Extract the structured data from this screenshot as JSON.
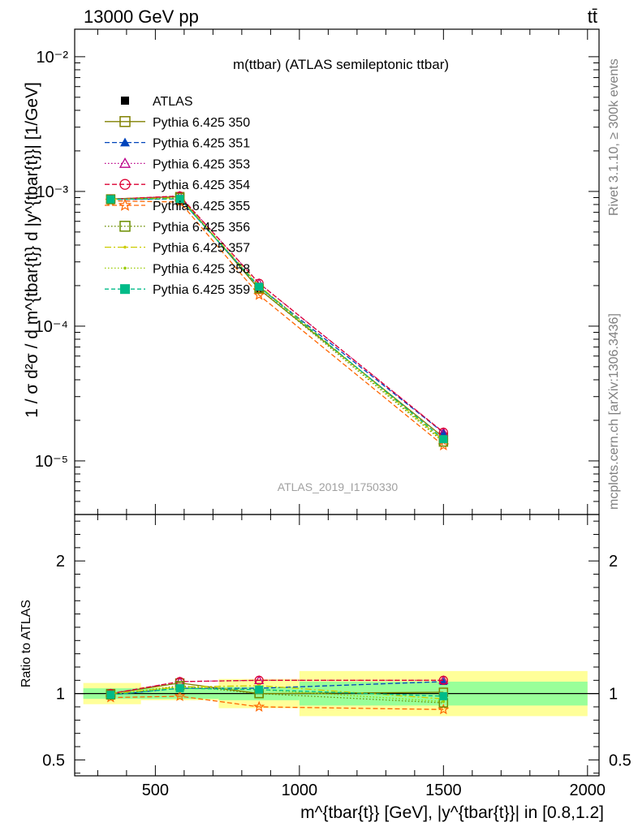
{
  "header": {
    "energy_label": "13000 GeV pp",
    "process_label": "tt̄"
  },
  "side_labels": {
    "rivet": "Rivet 3.1.10, ≥ 300k events",
    "source": "mcplots.cern.ch [arXiv:1306.3436]"
  },
  "watermark": "ATLAS_2019_I1750330",
  "chart_data": [
    {
      "type": "line",
      "panel": "main",
      "title": "m(ttbar) (ATLAS semileptonic ttbar)",
      "ylabel": "1 / σ d²σ / d m^{tbar{t}} d |y^{tbar{t}}| [1/GeV]",
      "yscale": "log",
      "ylim": [
        4e-06,
        0.016
      ],
      "xlim": [
        220,
        2040
      ],
      "ytick_labels": [
        "10⁻⁵",
        "10⁻⁴",
        "10⁻³",
        "10⁻²"
      ],
      "legend_position": "top-left",
      "x": [
        345,
        585,
        860,
        1500
      ],
      "bins": [
        [
          250,
          450
        ],
        [
          450,
          720
        ],
        [
          720,
          1000
        ],
        [
          1000,
          2000
        ]
      ],
      "series": [
        {
          "name": "ATLAS",
          "values": [
            0.00088,
            0.00085,
            0.00019,
            1.48e-05
          ],
          "color": "#000000",
          "marker": "square-filled",
          "dash": "none"
        },
        {
          "name": "Pythia 6.425 350",
          "values": [
            0.00088,
            0.000915,
            0.000188,
            1.5e-05
          ],
          "color": "#808000",
          "marker": "square-open",
          "dash": "none"
        },
        {
          "name": "Pythia 6.425 351",
          "values": [
            0.00087,
            0.00088,
            0.000196,
            1.62e-05
          ],
          "color": "#0044bb",
          "marker": "triangle-filled",
          "dash": "6,3"
        },
        {
          "name": "Pythia 6.425 353",
          "values": [
            0.000875,
            0.000925,
            0.000208,
            1.63e-05
          ],
          "color": "#bb0088",
          "marker": "triangle-open",
          "dash": "1.5,2.5"
        },
        {
          "name": "Pythia 6.425 354",
          "values": [
            0.000875,
            0.000925,
            0.000208,
            1.63e-05
          ],
          "color": "#dd0033",
          "marker": "circle-open",
          "dash": "6,3"
        },
        {
          "name": "Pythia 6.425 355",
          "values": [
            0.00085,
            0.000835,
            0.00017,
            1.3e-05
          ],
          "color": "#ff6600",
          "marker": "star-open",
          "dash": "6,3"
        },
        {
          "name": "Pythia 6.425 356",
          "values": [
            0.00087,
            0.0009,
            0.00019,
            1.38e-05
          ],
          "color": "#6b8e00",
          "marker": "square-open",
          "dash": "1.5,2.5"
        },
        {
          "name": "Pythia 6.425 357",
          "values": [
            0.000875,
            0.000895,
            0.0002,
            1.42e-05
          ],
          "color": "#cccc00",
          "marker": "dot",
          "dash": "8,3,2,3"
        },
        {
          "name": "Pythia 6.425 358",
          "values": [
            0.00087,
            0.00089,
            0.000195,
            1.4e-05
          ],
          "color": "#99cc00",
          "marker": "dot",
          "dash": "1.5,2.5"
        },
        {
          "name": "Pythia 6.425 359",
          "values": [
            0.000875,
            0.00088,
            0.000196,
            1.45e-05
          ],
          "color": "#00bb88",
          "marker": "square-filled",
          "dash": "5,3"
        }
      ]
    },
    {
      "type": "line",
      "panel": "ratio",
      "xlabel": "m^{tbar{t}} [GeV], |y^{tbar{t}}| in [0.8,1.2]",
      "ylabel": "Ratio to ATLAS",
      "ylim": [
        0.38,
        2.35
      ],
      "xlim": [
        220,
        2040
      ],
      "yticks": [
        0.5,
        1,
        2
      ],
      "xticks": [
        500,
        1000,
        1500,
        2000
      ],
      "x": [
        345,
        585,
        860,
        1500
      ],
      "bins": [
        [
          250,
          450
        ],
        [
          450,
          720
        ],
        [
          720,
          1000
        ],
        [
          1000,
          2000
        ]
      ],
      "bands": {
        "stat_color": "#99ff99",
        "total_color": "#ffff99",
        "stat": [
          [
            0.96,
            1.04
          ],
          [
            0.96,
            1.04
          ],
          [
            0.95,
            1.05
          ],
          [
            0.91,
            1.09
          ]
        ],
        "total": [
          [
            0.92,
            1.08
          ],
          [
            0.95,
            1.05
          ],
          [
            0.89,
            1.11
          ],
          [
            0.83,
            1.17
          ]
        ]
      },
      "series": [
        {
          "name": "Pythia 6.425 350",
          "values": [
            1.0,
            1.08,
            1.0,
            1.01
          ]
        },
        {
          "name": "Pythia 6.425 351",
          "values": [
            0.99,
            1.04,
            1.04,
            1.09
          ]
        },
        {
          "name": "Pythia 6.425 353",
          "values": [
            1.0,
            1.09,
            1.1,
            1.1
          ]
        },
        {
          "name": "Pythia 6.425 354",
          "values": [
            1.0,
            1.09,
            1.1,
            1.1
          ]
        },
        {
          "name": "Pythia 6.425 355",
          "values": [
            0.97,
            0.98,
            0.9,
            0.88
          ]
        },
        {
          "name": "Pythia 6.425 356",
          "values": [
            0.99,
            1.06,
            1.0,
            0.93
          ]
        },
        {
          "name": "Pythia 6.425 357",
          "values": [
            1.0,
            1.05,
            1.06,
            0.96
          ]
        },
        {
          "name": "Pythia 6.425 358",
          "values": [
            0.99,
            1.05,
            1.03,
            0.94
          ]
        },
        {
          "name": "Pythia 6.425 359",
          "values": [
            0.99,
            1.04,
            1.03,
            0.98
          ]
        }
      ]
    }
  ]
}
